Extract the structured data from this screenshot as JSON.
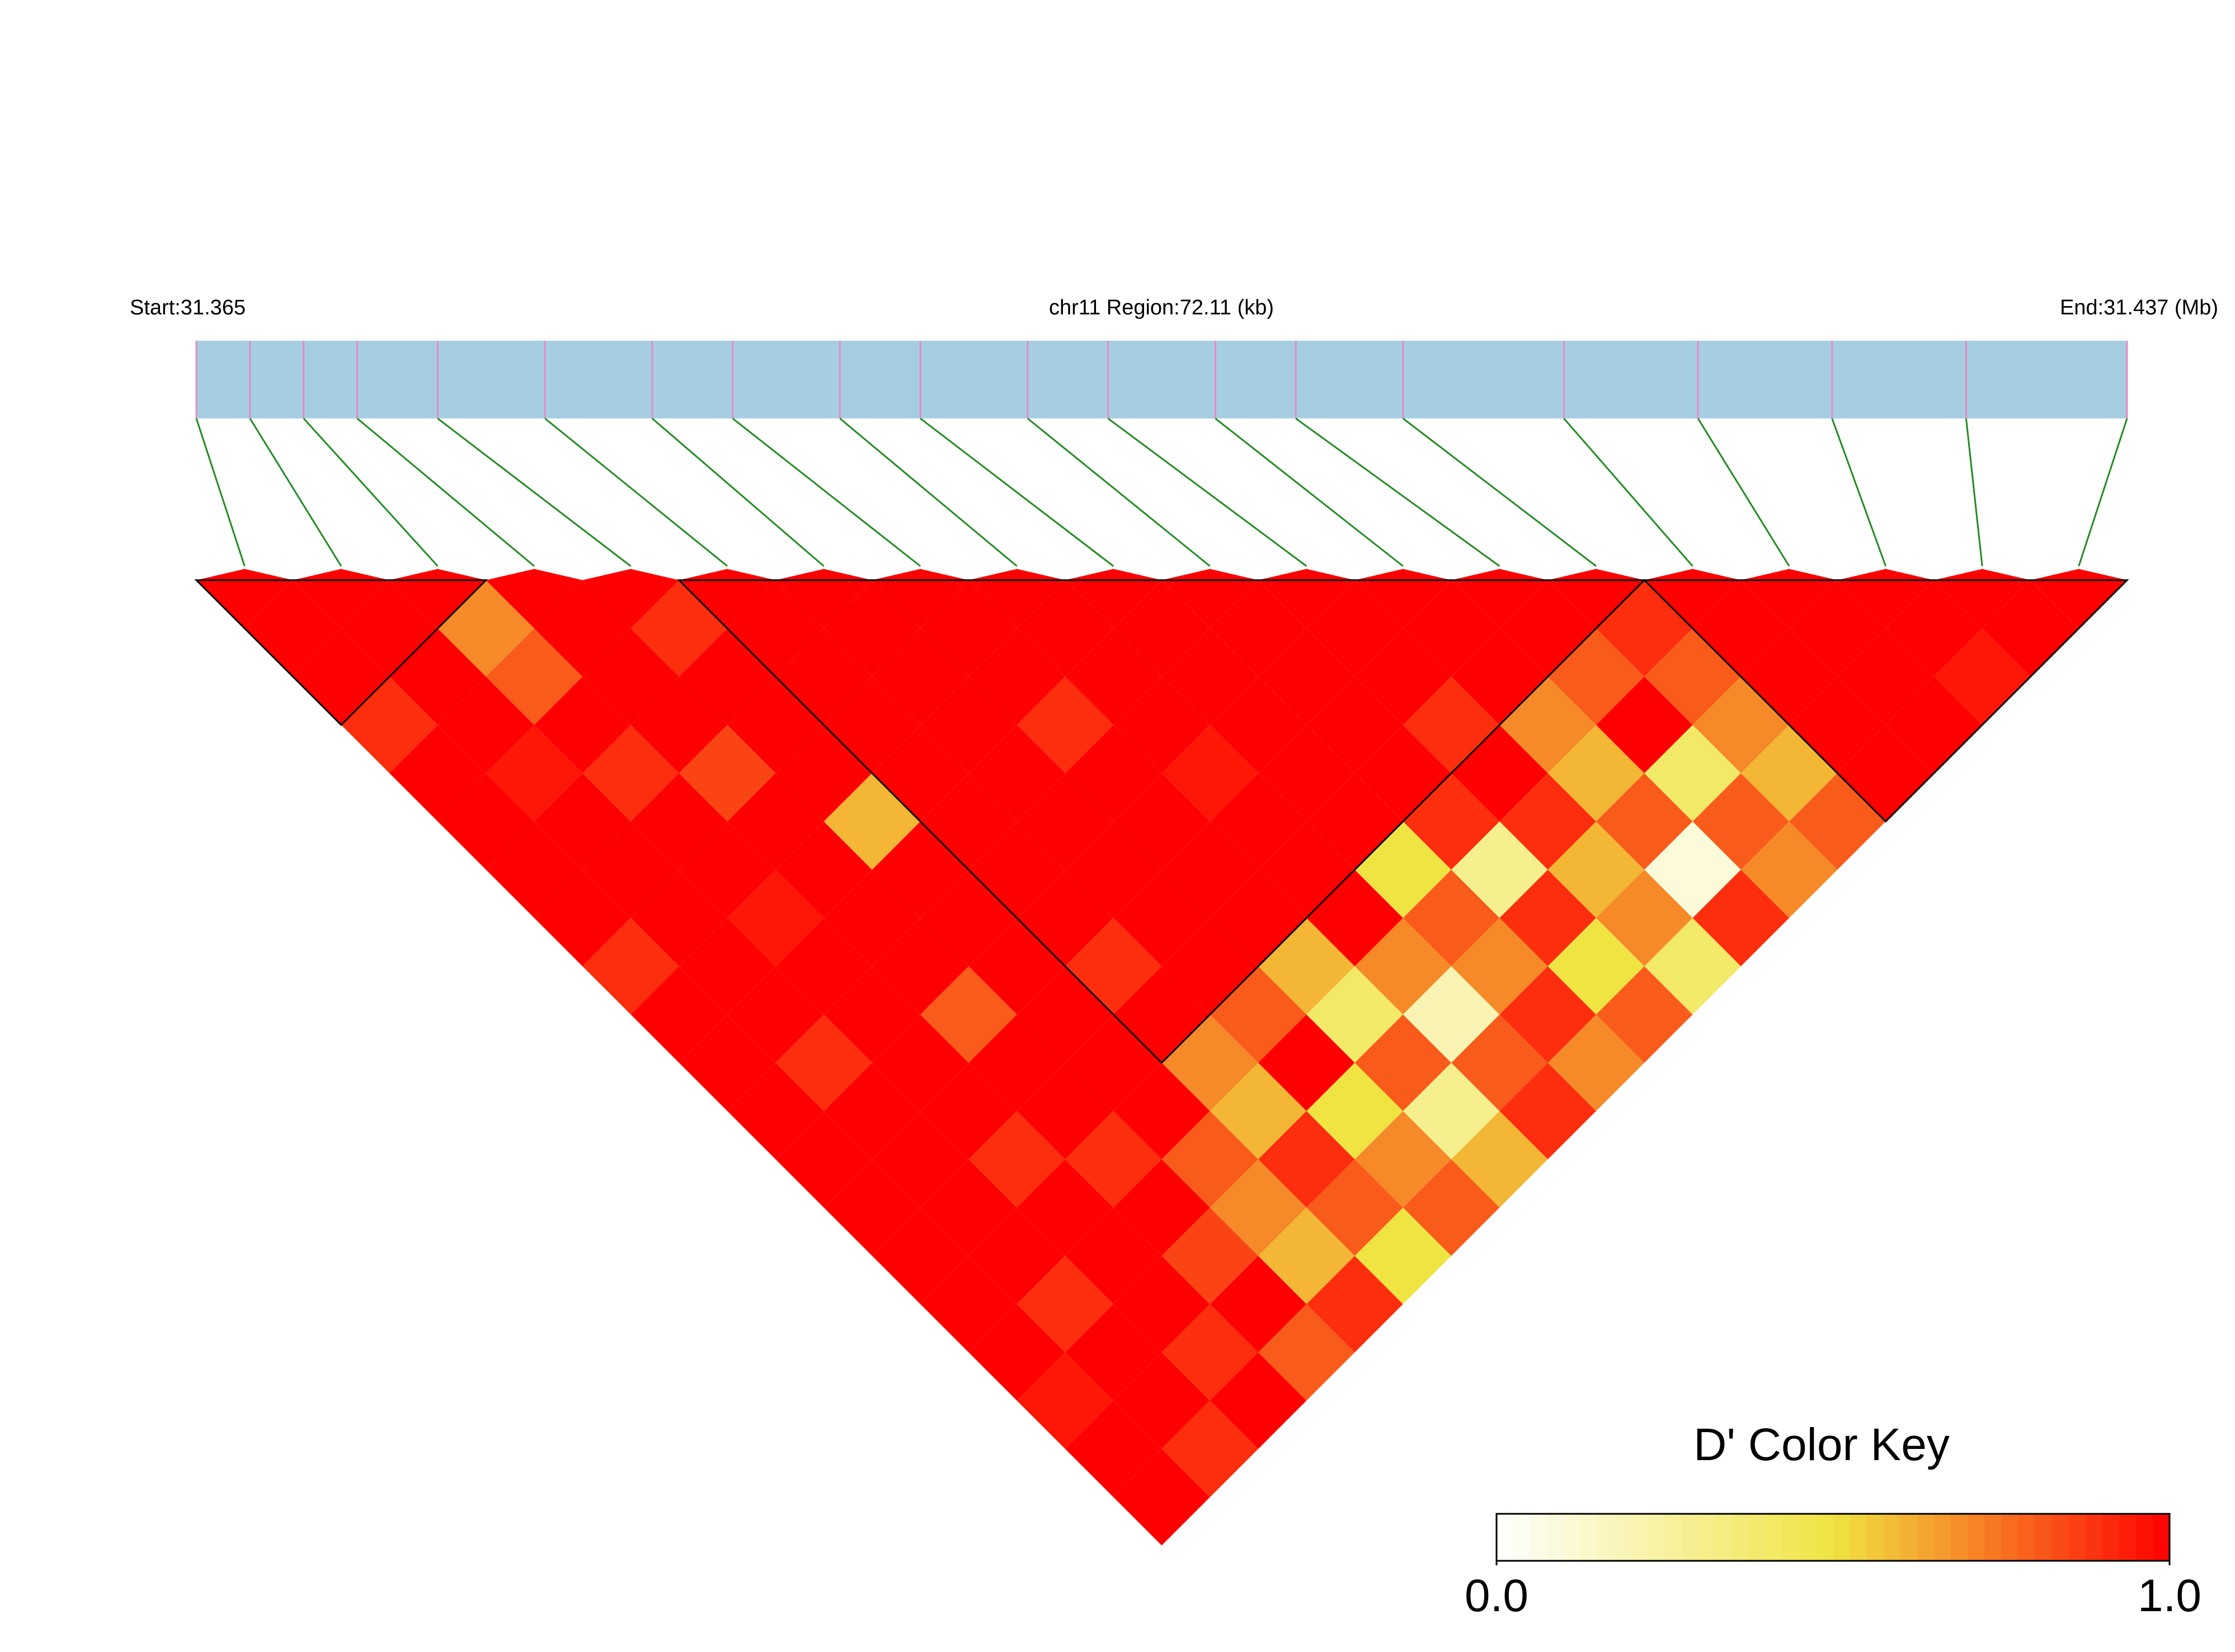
{
  "chart_data": {
    "type": "ld-heatmap",
    "start_label": "Start:31.365",
    "region_label": "chr11 Region:72.11 (kb)",
    "end_label": "End:31.437 (Mb)",
    "xlim": [
      31.365,
      31.437
    ],
    "positions": [
      31.365,
      31.367,
      31.369,
      31.371,
      31.374,
      31.378,
      31.382,
      31.385,
      31.389,
      31.392,
      31.396,
      31.399,
      31.403,
      31.406,
      31.41,
      31.416,
      31.421,
      31.426,
      31.431,
      31.437
    ],
    "dprime": [
      [
        1
      ],
      [
        1,
        1
      ],
      [
        0.9,
        1,
        0.7
      ],
      [
        1,
        1,
        0.8,
        1
      ],
      [
        1,
        0.95,
        1,
        1,
        0.9
      ],
      [
        1,
        1,
        0.9,
        1,
        1,
        1
      ],
      [
        1,
        1,
        1,
        0.85,
        1,
        1,
        1
      ],
      [
        0.9,
        1,
        1,
        1,
        1,
        1,
        1,
        1
      ],
      [
        1,
        1,
        0.95,
        1,
        0.6,
        1,
        1,
        1,
        1
      ],
      [
        1,
        1,
        1,
        1,
        1,
        1,
        1,
        0.9,
        1,
        1
      ],
      [
        1,
        0.9,
        1,
        1,
        1,
        1,
        1,
        1,
        1,
        1,
        1
      ],
      [
        1,
        1,
        1,
        0.8,
        1,
        1,
        1,
        1,
        0.95,
        1,
        1,
        1
      ],
      [
        1,
        1,
        1,
        1,
        1,
        0.9,
        1,
        1,
        1,
        1,
        1,
        1,
        1
      ],
      [
        1,
        1,
        0.9,
        1,
        1,
        1,
        1,
        1,
        1,
        1,
        1,
        0.9,
        1,
        1
      ],
      [
        1,
        1,
        1,
        0.9,
        1,
        0.7,
        0.8,
        0.6,
        1,
        0.5,
        0.9,
        1,
        0.7,
        0.8,
        0.9
      ],
      [
        1,
        0.9,
        1,
        1,
        0.8,
        0.6,
        1,
        0.4,
        0.7,
        0.8,
        0.3,
        0.9,
        0.6,
        1,
        0.8,
        1
      ],
      [
        0.95,
        1,
        1,
        0.85,
        0.7,
        0.9,
        0.5,
        0.8,
        0.2,
        0.7,
        0.9,
        0.6,
        0.8,
        0.4,
        0.7,
        1,
        1
      ],
      [
        1,
        1,
        0.9,
        1,
        0.6,
        0.8,
        0.7,
        0.3,
        0.8,
        0.9,
        0.5,
        0.7,
        0.1,
        0.8,
        0.6,
        1,
        1,
        1
      ],
      [
        1,
        0.9,
        1,
        0.8,
        0.9,
        0.5,
        0.8,
        0.6,
        0.9,
        0.7,
        0.8,
        0.4,
        0.9,
        0.7,
        0.8,
        1,
        1,
        0.95,
        1
      ]
    ],
    "blocks": [
      [
        0,
        2
      ],
      [
        5,
        14
      ],
      [
        15,
        19
      ]
    ],
    "key_title": "D' Color Key",
    "zlim": [
      0,
      1
    ],
    "zticks": [
      {
        "value": 0,
        "label": "0.0"
      },
      {
        "value": 1,
        "label": "1.0"
      }
    ],
    "colors": [
      "#ffffff",
      "#f0e442",
      "#ff0000"
    ]
  }
}
